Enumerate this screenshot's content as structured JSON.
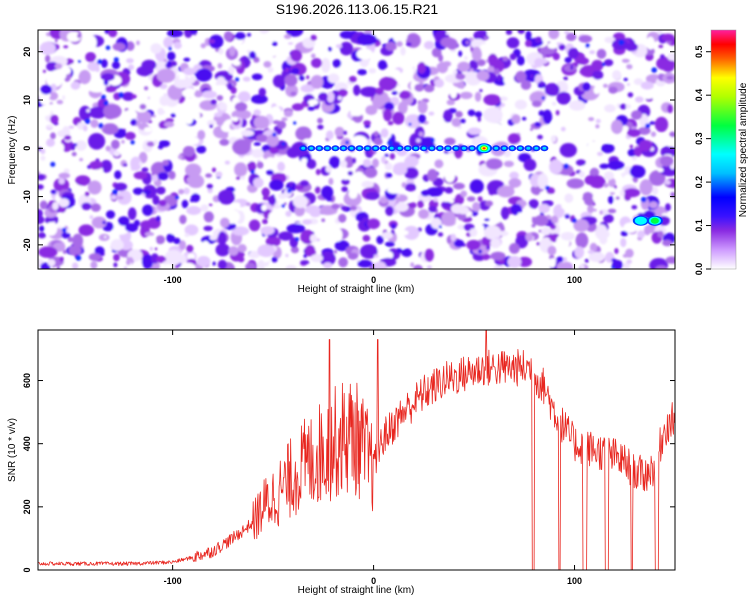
{
  "title": "S196.2026.113.06.15.R21",
  "chart_data": [
    {
      "type": "heatmap",
      "xlabel": "Height of straight line (km)",
      "ylabel": "Frequency (Hz)",
      "xlim": [
        -167,
        150
      ],
      "ylim": [
        -25,
        24.5
      ],
      "xticks": [
        -100,
        0,
        100
      ],
      "yticks": [
        -20,
        -10,
        0,
        10,
        20
      ],
      "xtick_labels": [
        "-100",
        "0",
        "100"
      ],
      "ytick_labels": [
        "-20",
        "-10",
        "0",
        "10",
        "20"
      ],
      "colorbar": {
        "label": "Normalized spectral amplitude",
        "range": [
          0,
          0.55
        ],
        "ticks": [
          0,
          0.1,
          0.2,
          0.3,
          0.4,
          0.5
        ],
        "tick_labels": [
          "0.0",
          "0.1",
          "0.2",
          "0.3",
          "0.4",
          "0.5"
        ],
        "colors": [
          "#ffffff",
          "#8a2be2",
          "#0000ff",
          "#00ffff",
          "#00ff00",
          "#ffff00",
          "#ff0000",
          "#ff00aa"
        ]
      },
      "features": [
        {
          "x": [
            -35,
            85
          ],
          "y": 0,
          "note": "horizontal line of peaks near 0 Hz"
        },
        {
          "x": 55,
          "y": 0,
          "peak_amplitude": 0.55
        },
        {
          "x": 140,
          "y": -15,
          "peak_amplitude": 0.3
        },
        {
          "x": 133,
          "y": -15,
          "peak_amplitude": 0.15
        }
      ]
    },
    {
      "type": "line",
      "xlabel": "Height of straight line (km)",
      "ylabel": "SNR (10 * v/v)",
      "xlim": [
        -167,
        150
      ],
      "ylim": [
        0,
        760
      ],
      "xticks": [
        -100,
        0,
        100
      ],
      "yticks": [
        0,
        200,
        400,
        600
      ],
      "xtick_labels": [
        "-100",
        "0",
        "100"
      ],
      "ytick_labels": [
        "0",
        "200",
        "400",
        "600"
      ],
      "line_color": "#e8261f",
      "series": [
        {
          "x": [
            -167,
            -140,
            -120,
            -100,
            -90,
            -80,
            -70,
            -60,
            -55,
            -50,
            -45,
            -40,
            -35,
            -30,
            -25,
            -20,
            -15,
            -10,
            -5,
            0,
            5,
            10,
            15,
            20,
            25,
            30,
            35,
            40,
            45,
            50,
            55,
            60,
            65,
            70,
            75,
            78,
            80,
            82,
            85,
            90,
            95,
            100,
            105,
            110,
            115,
            120,
            125,
            130,
            135,
            140,
            145,
            150
          ],
          "y": [
            20,
            20,
            20,
            25,
            40,
            60,
            100,
            150,
            200,
            230,
            260,
            300,
            330,
            350,
            380,
            400,
            420,
            430,
            380,
            320,
            420,
            460,
            500,
            530,
            560,
            580,
            600,
            610,
            620,
            630,
            640,
            640,
            640,
            640,
            640,
            640,
            620,
            600,
            580,
            500,
            450,
            400,
            390,
            380,
            370,
            360,
            340,
            310,
            300,
            330,
            450,
            480
          ]
        }
      ],
      "spikes": [
        {
          "x": -22,
          "y": 730
        },
        {
          "x": 2,
          "y": 730
        },
        {
          "x": 56,
          "y": 760
        }
      ],
      "dropouts_to_zero": [
        {
          "x": [
            79,
            80
          ]
        },
        {
          "x": [
            92,
            93
          ]
        },
        {
          "x": [
            104,
            106
          ]
        },
        {
          "x": [
            115,
            117
          ]
        },
        {
          "x": [
            128,
            129
          ]
        },
        {
          "x": [
            140,
            142
          ]
        }
      ]
    }
  ]
}
